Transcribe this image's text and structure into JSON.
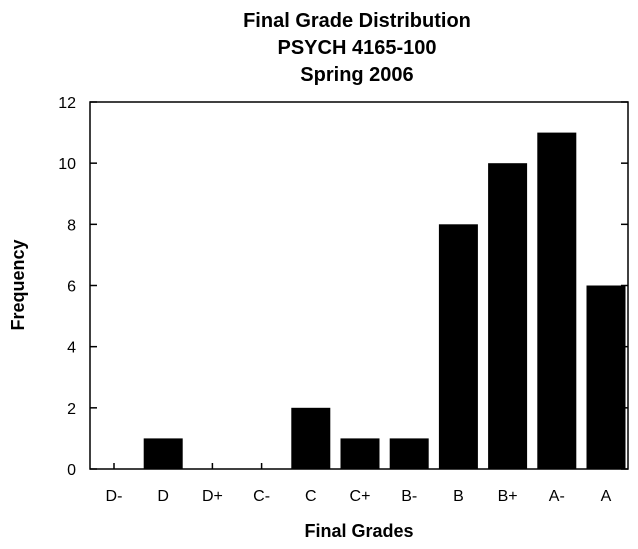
{
  "chart_data": {
    "type": "bar",
    "title_lines": [
      "Final Grade Distribution",
      "PSYCH 4165-100",
      "Spring 2006"
    ],
    "xlabel": "Final Grades",
    "ylabel": "Frequency",
    "categories": [
      "D-",
      "D",
      "D+",
      "C-",
      "C",
      "C+",
      "B-",
      "B",
      "B+",
      "A-",
      "A"
    ],
    "values": [
      0,
      1,
      0,
      0,
      2,
      1,
      1,
      8,
      10,
      11,
      6
    ],
    "ylim": [
      0,
      12
    ],
    "yticks": [
      "0",
      "2",
      "4",
      "6",
      "8",
      "10",
      "12"
    ],
    "grid": false,
    "bar_color": "#000000"
  }
}
